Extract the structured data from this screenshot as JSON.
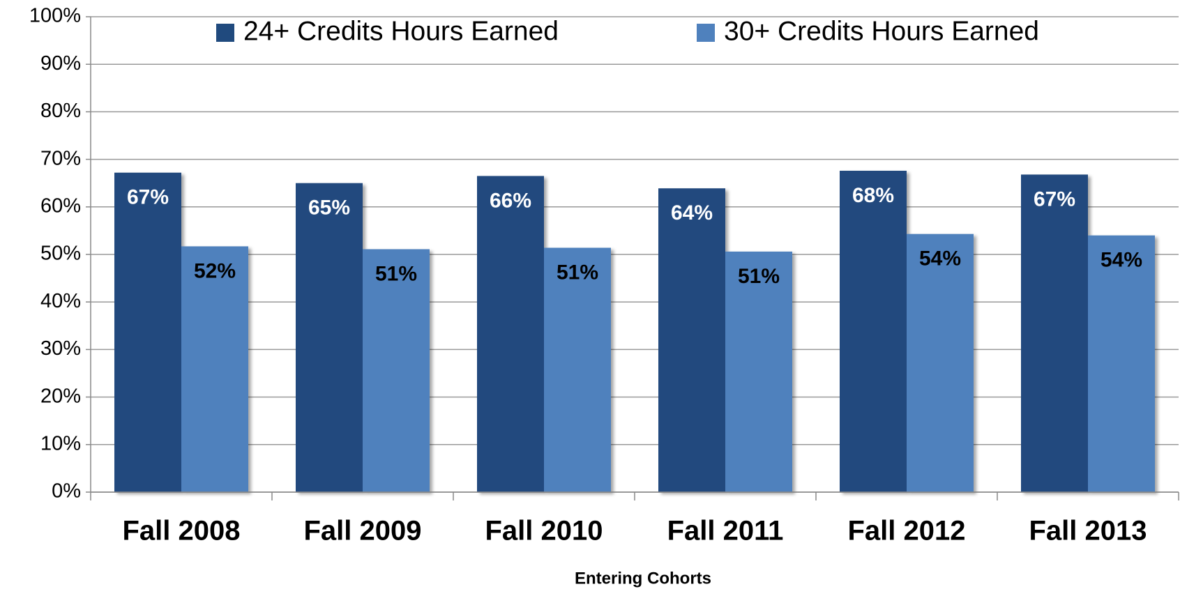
{
  "chart_data": {
    "type": "bar",
    "categories": [
      "Fall 2008",
      "Fall 2009",
      "Fall 2010",
      "Fall 2011",
      "Fall 2012",
      "Fall 2013"
    ],
    "series": [
      {
        "name": "24+ Credits Hours Earned",
        "color": "#204a7e",
        "values": [
          67.2,
          65.0,
          66.5,
          63.9,
          67.6,
          66.8
        ],
        "value_labels": [
          "67%",
          "65%",
          "66%",
          "64%",
          "68%",
          "67%"
        ]
      },
      {
        "name": "30+ Credits Hours Earned",
        "color": "#4f81bd",
        "values": [
          51.7,
          51.1,
          51.4,
          50.6,
          54.3,
          54.0
        ],
        "value_labels": [
          "52%",
          "51%",
          "51%",
          "51%",
          "54%",
          "54%"
        ]
      }
    ],
    "xlabel": "Entering Cohorts",
    "ylim": [
      0,
      100
    ],
    "yticks": [
      {
        "value": 0,
        "label": "0%"
      },
      {
        "value": 10,
        "label": "10%"
      },
      {
        "value": 20,
        "label": "20%"
      },
      {
        "value": 30,
        "label": "30%"
      },
      {
        "value": 40,
        "label": "40%"
      },
      {
        "value": 50,
        "label": "50%"
      },
      {
        "value": 60,
        "label": "60%"
      },
      {
        "value": 70,
        "label": "70%"
      },
      {
        "value": 80,
        "label": "80%"
      },
      {
        "value": 90,
        "label": "90%"
      },
      {
        "value": 100,
        "label": "100%"
      }
    ],
    "grid": true,
    "legend": "top"
  }
}
